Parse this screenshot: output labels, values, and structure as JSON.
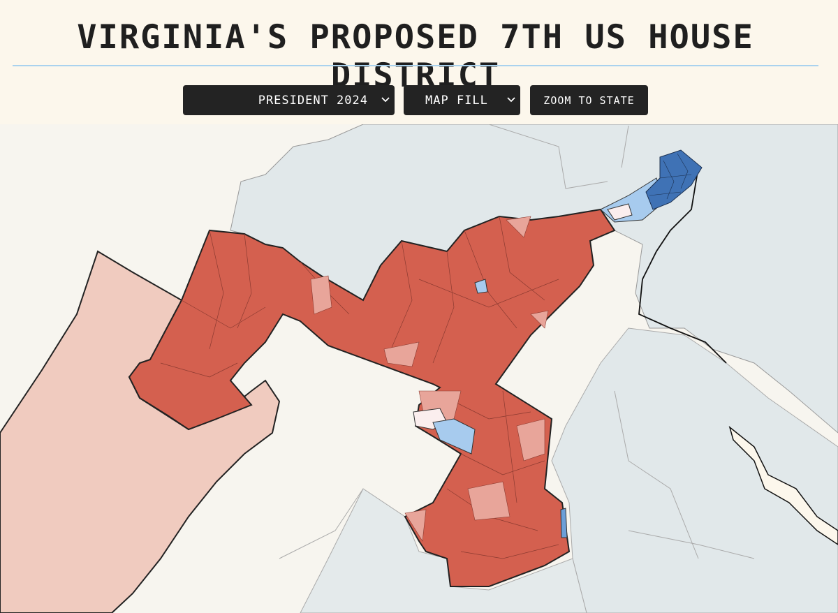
{
  "header": {
    "title": "VIRGINIA'S PROPOSED 7TH US HOUSE DISTRICT"
  },
  "controls": {
    "election": "PRESIDENT 2024",
    "mode": "MAP FILL",
    "zoom": "ZOOM TO STATE"
  }
}
